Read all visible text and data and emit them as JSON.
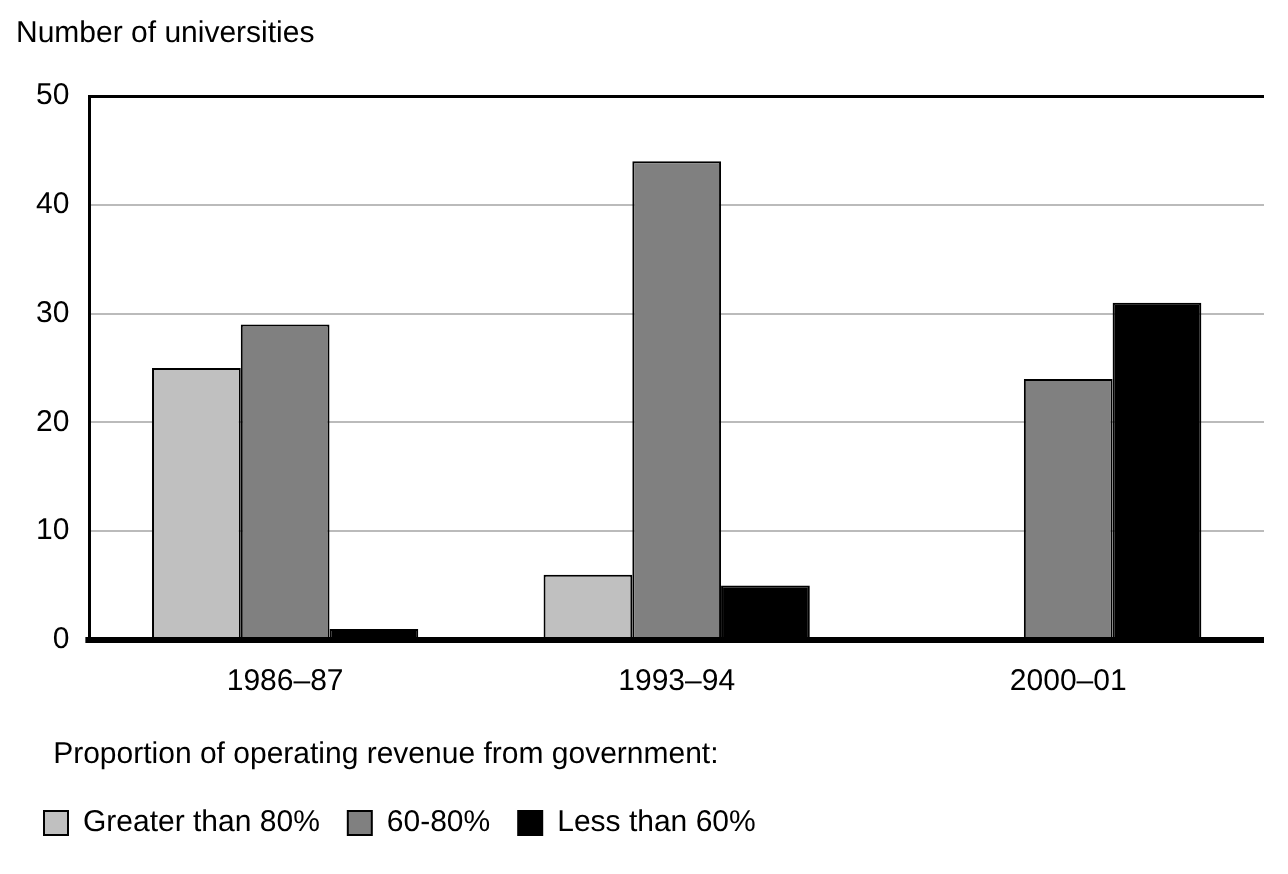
{
  "chart_data": {
    "type": "bar",
    "ylabel": "Number of universities",
    "legend_title": "Proportion of operating revenue from government:",
    "categories": [
      "1986–87",
      "1993–94",
      "2000–01"
    ],
    "series": [
      {
        "name": "Greater than 80%",
        "color": "#c0c0c0",
        "values": [
          25,
          6,
          0
        ]
      },
      {
        "name": "60-80%",
        "color": "#808080",
        "values": [
          29,
          44,
          24
        ]
      },
      {
        "name": "Less than 60%",
        "color": "#000000",
        "values": [
          1,
          5,
          31
        ]
      }
    ],
    "ylim": [
      0,
      50
    ],
    "yticks": [
      0,
      10,
      20,
      30,
      40,
      50
    ],
    "grid": "y",
    "legend": "bottom"
  }
}
